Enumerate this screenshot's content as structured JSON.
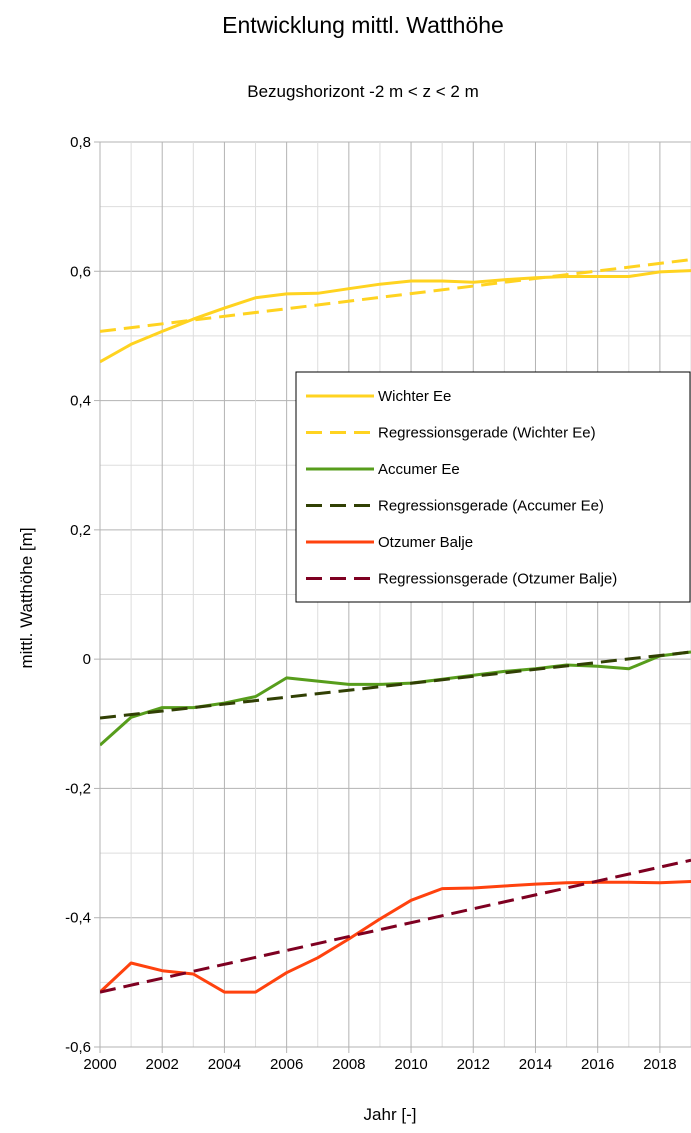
{
  "chart_data": {
    "type": "line",
    "title": "Entwicklung mittl. Watthöhe",
    "subtitle": "Bezugshorizont -2 m < z < 2 m",
    "xlabel": "Jahr [-]",
    "ylabel": "mittl. Watthöhe [m]",
    "xlim": [
      2000,
      2019
    ],
    "ylim": [
      -0.6,
      0.8
    ],
    "x_ticks": [
      2000,
      2002,
      2004,
      2006,
      2008,
      2010,
      2012,
      2014,
      2016,
      2018
    ],
    "x_tick_labels": [
      "2000",
      "2002",
      "2004",
      "2006",
      "2008",
      "2010",
      "2012",
      "2014",
      "2016",
      "2018"
    ],
    "y_ticks": [
      -0.6,
      -0.4,
      -0.2,
      0,
      0.2,
      0.4,
      0.6,
      0.8
    ],
    "y_tick_labels": [
      "-0,6",
      "-0,4",
      "-0,2",
      "0",
      "0,2",
      "0,4",
      "0,6",
      "0,8"
    ],
    "grid": true,
    "legend_position": "right",
    "series": [
      {
        "name": "Wichter Ee",
        "color": "#ffd320",
        "dash": "solid",
        "x": [
          2000,
          2001,
          2002,
          2003,
          2004,
          2005,
          2006,
          2007,
          2008,
          2009,
          2010,
          2011,
          2012,
          2013,
          2014,
          2015,
          2016,
          2017,
          2018,
          2019
        ],
        "values": [
          0.46,
          0.487,
          0.507,
          0.526,
          0.543,
          0.559,
          0.565,
          0.566,
          0.573,
          0.58,
          0.585,
          0.585,
          0.583,
          0.587,
          0.59,
          0.592,
          0.592,
          0.592,
          0.599,
          0.601
        ]
      },
      {
        "name": "Regressionsgerade (Wichter Ee)",
        "color": "#ffd320",
        "dash": "dashed",
        "x": [
          2000,
          2019
        ],
        "values": [
          0.507,
          0.618
        ]
      },
      {
        "name": "Accumer Ee",
        "color": "#579d1c",
        "dash": "solid",
        "x": [
          2000,
          2001,
          2002,
          2003,
          2004,
          2005,
          2006,
          2007,
          2008,
          2009,
          2010,
          2011,
          2012,
          2013,
          2014,
          2015,
          2016,
          2017,
          2018,
          2019
        ],
        "values": [
          -0.133,
          -0.09,
          -0.075,
          -0.075,
          -0.068,
          -0.058,
          -0.029,
          -0.034,
          -0.039,
          -0.039,
          -0.037,
          -0.031,
          -0.025,
          -0.019,
          -0.015,
          -0.009,
          -0.011,
          -0.015,
          0.005,
          0.011
        ]
      },
      {
        "name": "Regressionsgerade (Accumer Ee)",
        "color": "#314004",
        "dash": "dashed",
        "x": [
          2000,
          2019
        ],
        "values": [
          -0.091,
          0.011
        ]
      },
      {
        "name": "Otzumer Balje",
        "color": "#ff420e",
        "dash": "solid",
        "x": [
          2000,
          2001,
          2002,
          2003,
          2004,
          2005,
          2006,
          2007,
          2008,
          2009,
          2010,
          2011,
          2012,
          2013,
          2014,
          2015,
          2016,
          2017,
          2018,
          2019
        ],
        "values": [
          -0.515,
          -0.47,
          -0.482,
          -0.487,
          -0.515,
          -0.515,
          -0.485,
          -0.462,
          -0.433,
          -0.402,
          -0.373,
          -0.355,
          -0.354,
          -0.351,
          -0.348,
          -0.346,
          -0.345,
          -0.345,
          -0.346,
          -0.344
        ]
      },
      {
        "name": "Regressionsgerade (Otzumer Balje)",
        "color": "#7e0021",
        "dash": "dashed",
        "x": [
          2000,
          2019
        ],
        "values": [
          -0.515,
          -0.311
        ]
      }
    ]
  }
}
